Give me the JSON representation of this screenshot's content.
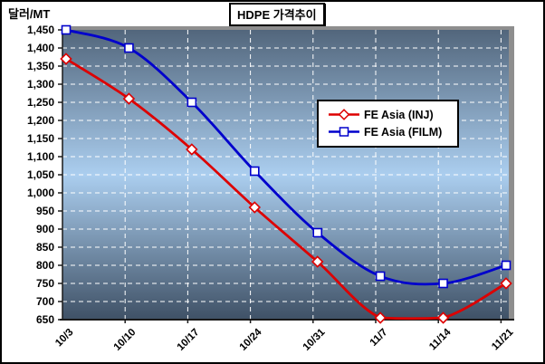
{
  "chart_data": {
    "type": "line",
    "smooth": true,
    "title": "HDPE 가격추이",
    "ylabel": "달러/MT",
    "categories": [
      "10/3",
      "10/10",
      "10/17",
      "10/24",
      "10/31",
      "11/7",
      "11/14",
      "11/21"
    ],
    "series": [
      {
        "name": "FE Asia (INJ)",
        "color": "#dd0000",
        "marker": "diamond",
        "values": [
          1370,
          1260,
          1120,
          960,
          810,
          655,
          655,
          750
        ]
      },
      {
        "name": "FE Asia (FILM)",
        "color": "#0000cc",
        "marker": "square",
        "values": [
          1450,
          1400,
          1250,
          1060,
          890,
          770,
          750,
          800
        ]
      }
    ],
    "ylim": [
      650,
      1450
    ],
    "y_tick_step": 50,
    "y_tick_labels": [
      "1,450",
      "1,400",
      "1,350",
      "1,300",
      "1,250",
      "1,200",
      "1,150",
      "1,100",
      "1,050",
      "1,000",
      "950",
      "900",
      "850",
      "800",
      "750",
      "700",
      "650"
    ],
    "grid": true,
    "legend_position": "middle-right",
    "styles": {
      "plot_gradient_top": "#52667c",
      "plot_gradient_mid": "#abceef",
      "plot_gradient_bottom": "#3f5166",
      "wall_color": "#8e8e8e",
      "gridline_color": "#ffffff",
      "axis_color": "#1a1a1a",
      "marker_fill": "#ffffff"
    }
  }
}
